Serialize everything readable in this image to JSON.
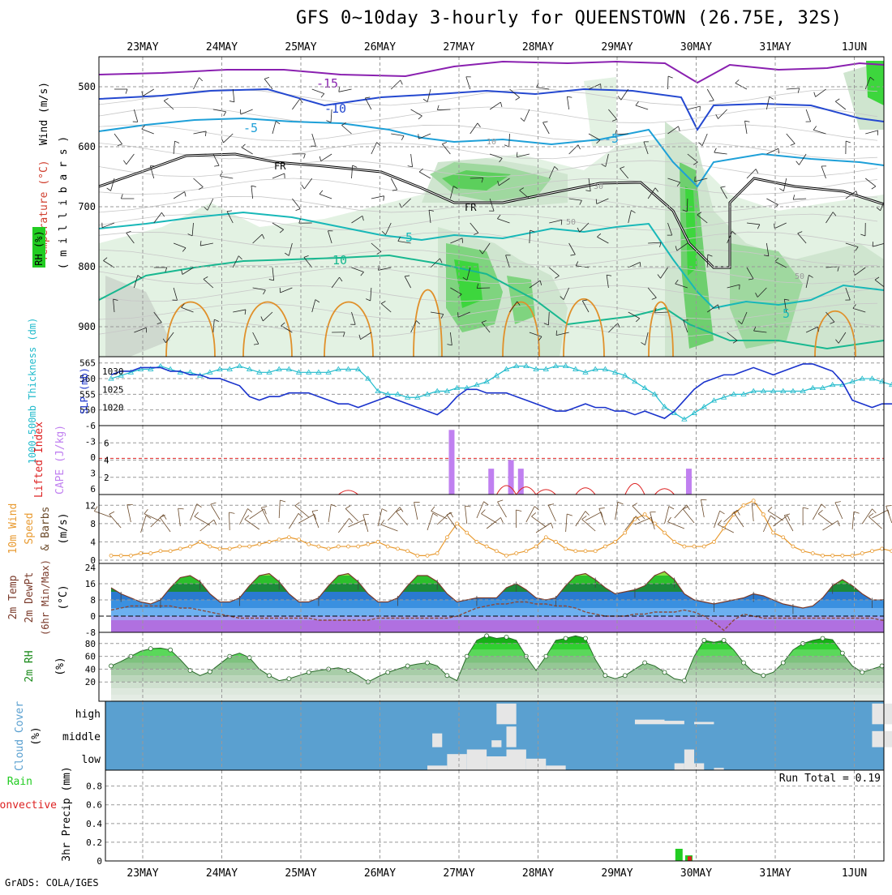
{
  "title": "GFS 0~10day 3-hourly for QUEENSTOWN (26.75E, 32S)",
  "credit": "GrADS: COLA/IGES",
  "dates": [
    "23MAY",
    "24MAY",
    "25MAY",
    "26MAY",
    "27MAY",
    "28MAY",
    "29MAY",
    "30MAY",
    "31MAY",
    "1JUN"
  ],
  "colors": {
    "rh_green": "#22cc22",
    "slp": "#1a33cc",
    "thickness": "#22bbcc",
    "cape": "#c080f0",
    "lifted_index": "#dd2222",
    "wind10m": "#e89a30",
    "barbs": "#6b4a2a",
    "temp_fill_blue": "#3a8ee0",
    "dewpt": "#8b4a3a",
    "cloud": "#5aa0d0",
    "precip_total": "#22cc22",
    "precip_conv": "#dd2222"
  },
  "panel_labels": {
    "upper": {
      "wind": "Wind (m/s)",
      "temp": "Temperature (°C)",
      "rh": "RH (%)",
      "units": "( m i l l i b a r s )"
    },
    "thickness": {
      "thk": "1000-500mb Thickness (dm)",
      "slp": "SLP (mb)"
    },
    "cape": {
      "li": "Lifted Index",
      "cape": "CAPE (J/kg)"
    },
    "wind": {
      "a": "10m Wind",
      "b": "Speed",
      "c": "& Barbs",
      "d": "(m/s)"
    },
    "temp": {
      "a": "2m Temp",
      "b": "2m DewPt",
      "c": "(6hr Min/Max)",
      "d": "(°C)"
    },
    "rh2m": {
      "a": "2m RH",
      "b": "(%)"
    },
    "cloud": {
      "a": "Cloud Cover",
      "b": "(%)"
    },
    "precip": {
      "a": "Total / Rain",
      "b": "Convective",
      "c": "3hr Precip (mm)"
    }
  },
  "run_total": "Run Total = 0.19",
  "contour_labels": {
    "t15": "-15",
    "t10": "-10",
    "t5": "-5",
    "fr": "FR",
    "p5": "5",
    "p10": "10",
    "rh10": "10",
    "rh30": "30",
    "rh50": "50"
  },
  "cloud_levels": [
    "high",
    "middle",
    "low"
  ],
  "chart_data": [
    {
      "type": "contour",
      "name": "upper",
      "ylabel": "(millibars)",
      "y_ticks": [
        "500",
        "600",
        "700",
        "800",
        "900"
      ],
      "temperature_contours_C": [
        -15,
        -10,
        -5,
        0,
        5,
        10
      ],
      "ylim": [
        950,
        450
      ]
    },
    {
      "type": "line",
      "name": "thickness_slp",
      "y_ticks_left": [
        "565",
        "560",
        "555",
        "550"
      ],
      "y_ticks_right": [
        "1030",
        "1025",
        "1020"
      ],
      "thickness_dm": [
        560,
        561,
        562,
        563,
        563,
        564,
        563,
        562,
        562,
        561,
        562,
        563,
        563,
        564,
        563,
        562,
        562,
        563,
        563,
        562,
        562,
        562,
        562,
        563,
        563,
        563,
        560,
        556,
        555,
        555,
        554,
        554,
        555,
        556,
        556,
        557,
        557,
        558,
        559,
        561,
        563,
        564,
        564,
        563,
        563,
        564,
        564,
        563,
        562,
        563,
        563,
        562,
        561,
        559,
        557,
        555,
        551,
        549,
        547,
        549,
        551,
        553,
        554,
        555,
        555,
        556,
        556,
        556,
        556,
        556,
        556,
        557,
        557,
        558,
        558,
        559,
        560,
        560,
        559,
        558,
        557,
        556
      ],
      "slp_mb": [
        1029,
        1030,
        1030,
        1031,
        1031,
        1031,
        1030,
        1030,
        1029,
        1029,
        1028,
        1028,
        1027,
        1026,
        1023,
        1022,
        1023,
        1023,
        1024,
        1024,
        1024,
        1023,
        1022,
        1021,
        1021,
        1020,
        1021,
        1022,
        1023,
        1022,
        1021,
        1020,
        1019,
        1018,
        1020,
        1023,
        1025,
        1025,
        1024,
        1024,
        1024,
        1023,
        1022,
        1021,
        1020,
        1019,
        1019,
        1020,
        1021,
        1020,
        1020,
        1019,
        1019,
        1018,
        1019,
        1018,
        1017,
        1019,
        1022,
        1025,
        1027,
        1028,
        1029,
        1029,
        1030,
        1031,
        1030,
        1029,
        1030,
        1031,
        1032,
        1032,
        1031,
        1030,
        1027,
        1022,
        1021,
        1020,
        1021,
        1021,
        1021,
        1022
      ]
    },
    {
      "type": "bar",
      "name": "cape_li",
      "y_ticks_left": [
        "-6",
        "-3",
        "0",
        "3",
        "6"
      ],
      "y_ticks_right": [
        "6",
        "4",
        "2"
      ],
      "cape_bars": [
        {
          "x": 34.5,
          "v": 7.5
        },
        {
          "x": 38.5,
          "v": 3
        },
        {
          "x": 40.5,
          "v": 4
        },
        {
          "x": 41.5,
          "v": 3
        },
        {
          "x": 58.5,
          "v": 3
        }
      ],
      "cape_ylim": [
        0,
        8
      ]
    },
    {
      "type": "line",
      "name": "wind10m",
      "y_ticks": [
        "0",
        "4",
        "8",
        "12"
      ],
      "ylim": [
        0,
        14
      ],
      "speed": [
        1,
        1,
        1,
        1.5,
        1.5,
        2,
        2,
        2.5,
        3,
        4,
        3,
        2.5,
        2.5,
        3,
        3,
        3.5,
        4,
        4.5,
        5,
        4.5,
        3.5,
        3,
        2.5,
        3,
        3,
        3,
        3.5,
        4,
        3,
        2.5,
        2,
        1,
        1,
        1.5,
        5,
        8,
        6,
        4,
        3,
        2,
        1,
        1.5,
        2,
        3,
        5,
        4,
        2.5,
        2,
        2,
        2,
        3,
        4,
        6,
        9,
        10,
        8,
        6,
        4,
        3,
        3,
        3,
        4,
        7,
        10,
        12,
        13,
        10,
        6,
        5,
        3,
        2,
        1.5,
        1,
        1,
        1,
        1,
        1.5,
        2,
        2.5,
        2,
        1.5,
        1,
        2,
        2.5,
        3
      ]
    },
    {
      "type": "area",
      "name": "temp2m",
      "y_ticks": [
        "24",
        "16",
        "8",
        "0",
        "-8"
      ],
      "ylim": [
        -8,
        26
      ],
      "temp": [
        14,
        11,
        9,
        7,
        6,
        8,
        14,
        19,
        20,
        17,
        11,
        7,
        7,
        9,
        15,
        20,
        21,
        17,
        11,
        7,
        7,
        9,
        15,
        20,
        21,
        17,
        11,
        7,
        7,
        9,
        15,
        20,
        20,
        17,
        11,
        7,
        8,
        9,
        9,
        9,
        14,
        16,
        13,
        9,
        8,
        9,
        15,
        20,
        21,
        18,
        14,
        11,
        12,
        13,
        15,
        20,
        22,
        18,
        11,
        8,
        7,
        6,
        7,
        8,
        9,
        11,
        10,
        8,
        6,
        5,
        4,
        5,
        9,
        15,
        18,
        15,
        11,
        8,
        8,
        9,
        10,
        11
      ],
      "dewpt": [
        3,
        4,
        5,
        5,
        5,
        5,
        5,
        4,
        4,
        3,
        2,
        1,
        0,
        -1,
        -1,
        -1,
        -1,
        -1,
        -1,
        -1,
        -1,
        -2,
        -2,
        -2,
        -2,
        -2,
        -2,
        -1,
        -1,
        -1,
        -1,
        -1,
        -1,
        -1,
        -1,
        0,
        2,
        4,
        5,
        6,
        6,
        7,
        7,
        6,
        6,
        5,
        5,
        4,
        2,
        1,
        0,
        0,
        0,
        1,
        1,
        2,
        2,
        2,
        3,
        2,
        0,
        -3,
        -7,
        -2,
        1,
        0,
        -1,
        -1,
        -1,
        -1,
        -1,
        -1,
        -1,
        -1,
        -1,
        -1,
        -1,
        -1,
        -2,
        -2,
        -2,
        -2
      ]
    },
    {
      "type": "area",
      "name": "rh2m",
      "y_ticks": [
        "80",
        "60",
        "40",
        "20"
      ],
      "ylim": [
        0,
        100
      ],
      "rh": [
        45,
        52,
        60,
        68,
        72,
        73,
        70,
        55,
        38,
        30,
        36,
        48,
        60,
        65,
        58,
        40,
        30,
        22,
        25,
        30,
        35,
        38,
        40,
        42,
        38,
        30,
        20,
        28,
        35,
        40,
        45,
        48,
        50,
        45,
        30,
        22,
        60,
        85,
        92,
        88,
        90,
        85,
        60,
        38,
        60,
        85,
        88,
        92,
        88,
        55,
        30,
        25,
        30,
        40,
        50,
        45,
        35,
        25,
        22,
        60,
        85,
        82,
        85,
        70,
        50,
        35,
        30,
        35,
        50,
        70,
        80,
        85,
        88,
        86,
        65,
        45,
        35,
        40,
        45,
        48,
        45,
        42
      ]
    },
    {
      "type": "bar",
      "name": "cloud",
      "categories": [
        "high",
        "middle",
        "low"
      ]
    },
    {
      "type": "bar",
      "name": "precip",
      "y_ticks": [
        "0.8",
        "0.6",
        "0.4",
        "0.2",
        "0"
      ],
      "ylim": [
        0,
        0.97
      ],
      "total": [
        {
          "x": 57.5,
          "v": 0.13
        },
        {
          "x": 58.5,
          "v": 0.06
        }
      ],
      "convective": [
        {
          "x": 58.5,
          "v": 0.05
        }
      ]
    }
  ]
}
